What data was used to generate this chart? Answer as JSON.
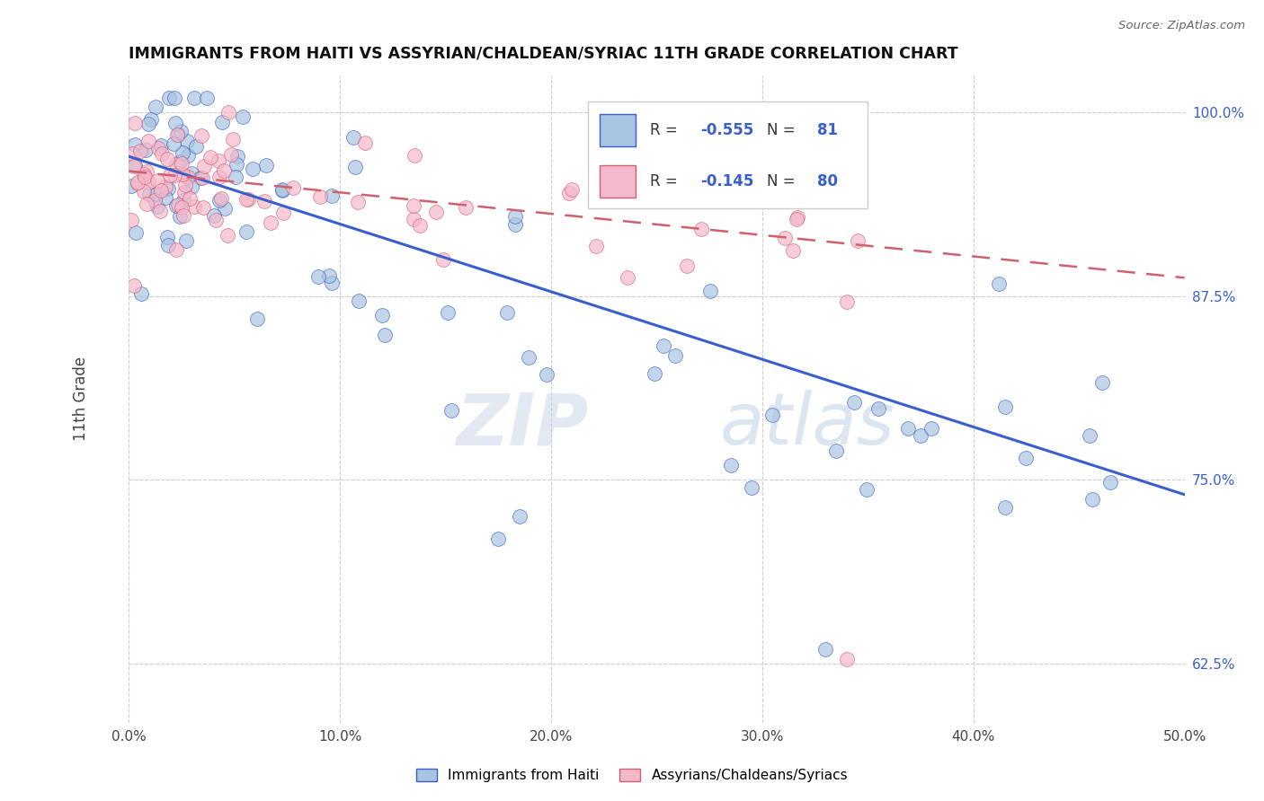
{
  "title": "IMMIGRANTS FROM HAITI VS ASSYRIAN/CHALDEAN/SYRIAC 11TH GRADE CORRELATION CHART",
  "source_text": "Source: ZipAtlas.com",
  "ylabel": "11th Grade",
  "xmin": 0.0,
  "xmax": 0.5,
  "ymin": 0.585,
  "ymax": 1.025,
  "xtick_labels": [
    "0.0%",
    "10.0%",
    "20.0%",
    "30.0%",
    "40.0%",
    "50.0%"
  ],
  "xtick_vals": [
    0.0,
    0.1,
    0.2,
    0.3,
    0.4,
    0.5
  ],
  "ytick_labels": [
    "62.5%",
    "75.0%",
    "87.5%",
    "100.0%"
  ],
  "ytick_vals": [
    0.625,
    0.75,
    0.875,
    1.0
  ],
  "color_haiti": "#a8c4e0",
  "color_assyrian": "#f4b8cb",
  "color_trend_haiti": "#3a5fcd",
  "color_trend_assyrian": "#d06070",
  "watermark_zip": "ZIP",
  "watermark_atlas": "atlas",
  "legend_label1": "Immigrants from Haiti",
  "legend_label2": "Assyrians/Chaldeans/Syriacs",
  "haiti_trend_intercept": 0.97,
  "haiti_trend_slope": -0.46,
  "assyrian_trend_intercept": 0.96,
  "assyrian_trend_slope": -0.145
}
